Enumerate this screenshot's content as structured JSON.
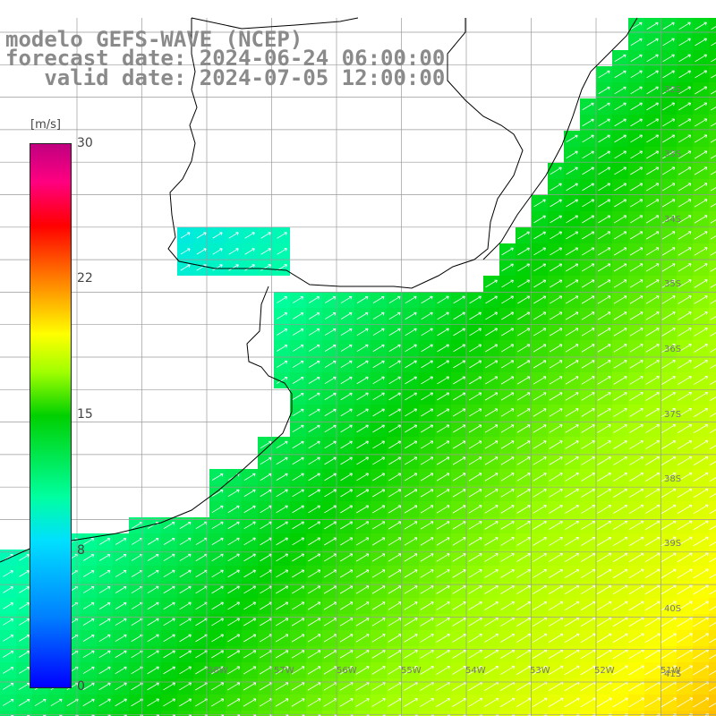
{
  "title": {
    "line1": "modelo GEFS-WAVE (NCEP)",
    "line2": "forecast date: 2024-06-24 06:00:00",
    "line3": "   valid date: 2024-07-05 12:00:00"
  },
  "colorbar": {
    "unit": "[m/s]",
    "ticks": [
      "30",
      "22",
      "15",
      "8",
      "0"
    ],
    "colors": [
      "#0000ff",
      "#0080ff",
      "#00e0ff",
      "#00ffa0",
      "#00d000",
      "#a0ff00",
      "#ffff00",
      "#ff8000",
      "#ff0000",
      "#c00080"
    ]
  },
  "lat_labels": [
    "32S",
    "33S",
    "34S",
    "35S",
    "36S",
    "37S",
    "38S",
    "39S",
    "40S",
    "41S"
  ],
  "lon_labels": [
    "58W",
    "57W",
    "56W",
    "55W",
    "54W",
    "53W",
    "52W",
    "51W"
  ],
  "colors": {
    "land": "#ffffff",
    "grid": "#9a9a9a",
    "coast": "#000000",
    "arrow": "#ffffff"
  }
}
